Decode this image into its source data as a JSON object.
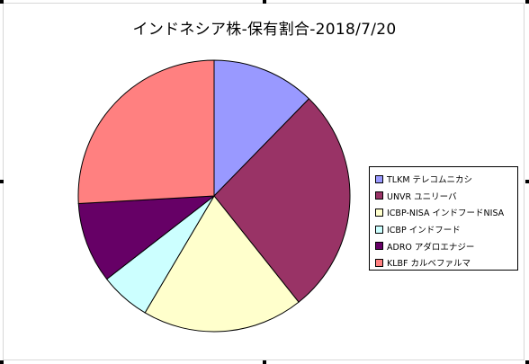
{
  "chart_data": {
    "type": "pie",
    "title": "インドネシア株-保有割合-2018/7/20",
    "legend_position": "right",
    "slices": [
      {
        "label": "TLKM テレコムニカシ",
        "value": 12.3,
        "color": "#9999ff"
      },
      {
        "label": "UNVR ユニリーバ",
        "value": 27.0,
        "color": "#993366"
      },
      {
        "label": "ICBP-NISA インドフードNISA",
        "value": 19.2,
        "color": "#ffffcc"
      },
      {
        "label": "ICBP インドフード",
        "value": 6.0,
        "color": "#ccffff"
      },
      {
        "label": "ADRO アダロエナジー",
        "value": 9.6,
        "color": "#660066"
      },
      {
        "label": "KLBF カルベファルマ",
        "value": 25.9,
        "color": "#ff8080"
      }
    ]
  }
}
